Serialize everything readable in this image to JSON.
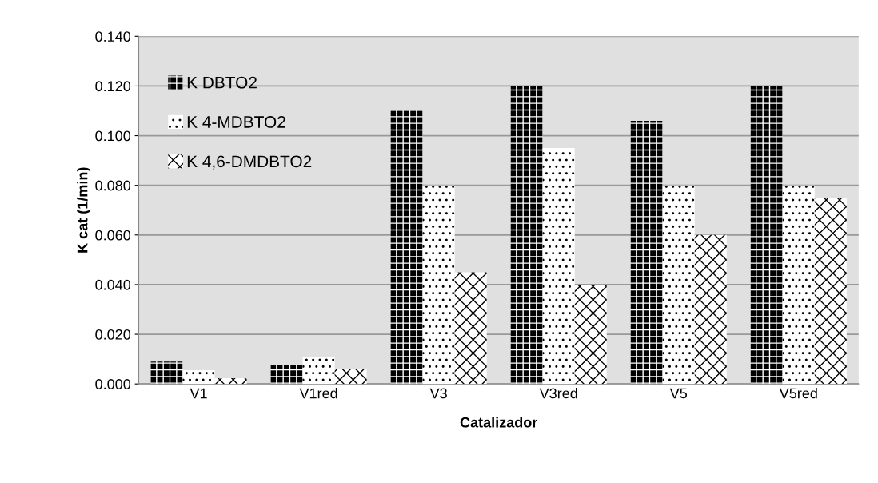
{
  "chart_data": {
    "type": "bar",
    "xlabel": "Catalizador",
    "ylabel": "K cat (1/min)",
    "categories": [
      "V1",
      "V1red",
      "V3",
      "V3red",
      "V5",
      "V5red"
    ],
    "series": [
      {
        "name": "K DBTO2",
        "color": "#000000",
        "values": [
          0.009,
          0.0075,
          0.11,
          0.12,
          0.106,
          0.12
        ]
      },
      {
        "name": "K 4-MDBTO2",
        "color": "#ffffff",
        "values": [
          0.0055,
          0.0107,
          0.08,
          0.095,
          0.08,
          0.08
        ]
      },
      {
        "name": "K 4,6-DMDBTO2",
        "color": "#ffffff",
        "values": [
          0.0023,
          0.006,
          0.045,
          0.04,
          0.06,
          0.075
        ]
      }
    ],
    "ylim": [
      0,
      0.14
    ],
    "yticks": [
      {
        "value": 0,
        "label": "0.000"
      },
      {
        "value": 0.02,
        "label": "0.020"
      },
      {
        "value": 0.04,
        "label": "0.040"
      },
      {
        "value": 0.06,
        "label": "0.060"
      },
      {
        "value": 0.08,
        "label": "0.080"
      },
      {
        "value": 0.1,
        "label": "0.100"
      },
      {
        "value": 0.12,
        "label": "0.120"
      },
      {
        "value": 0.14,
        "label": "0.140"
      }
    ],
    "grid": "y",
    "legend": "top left"
  }
}
